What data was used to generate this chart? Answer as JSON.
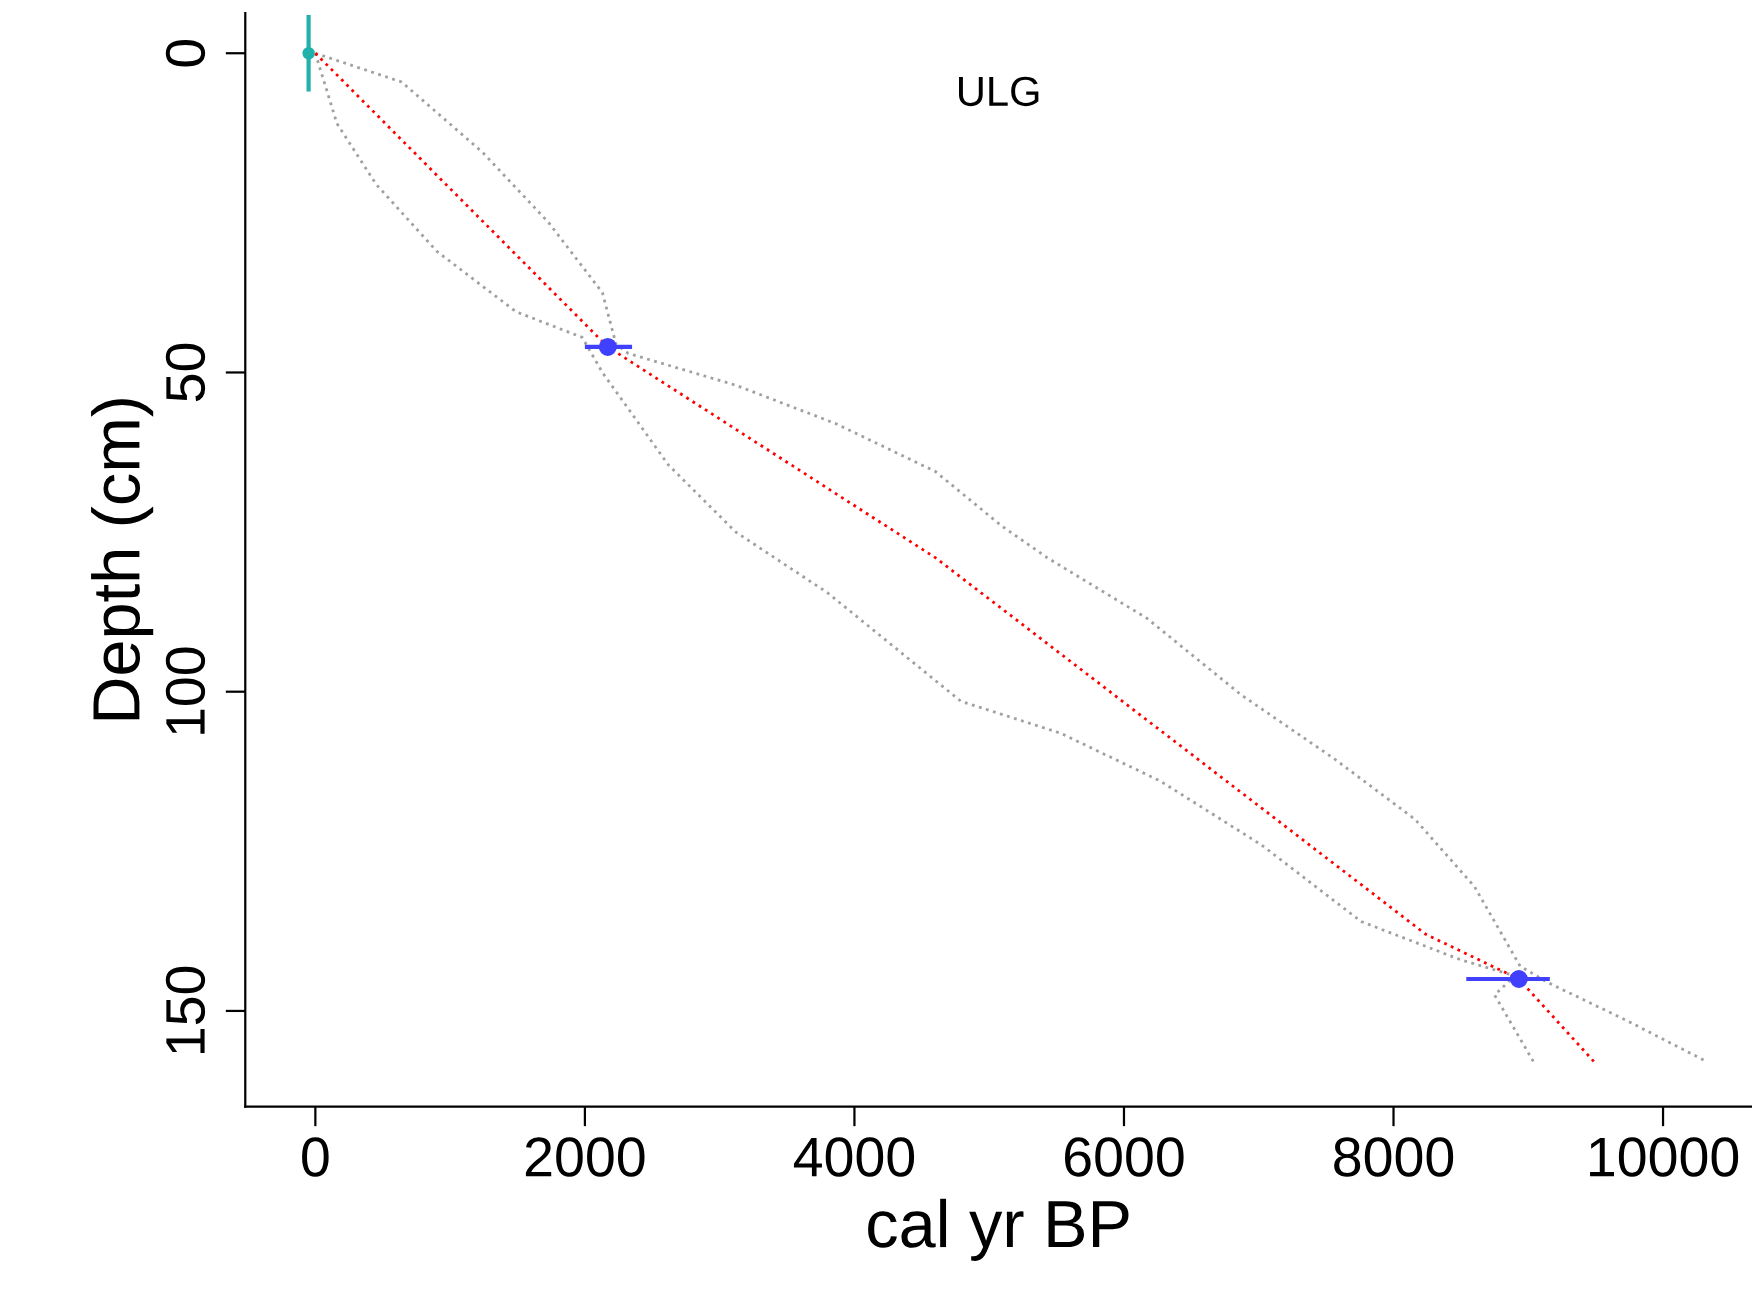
{
  "chart_data": {
    "type": "line",
    "title": "ULG",
    "xlabel": "cal yr BP",
    "ylabel": "Depth (cm)",
    "xlim": [
      -520,
      10660
    ],
    "xticks": [
      0,
      2000,
      4000,
      6000,
      8000,
      10000
    ],
    "ylim": [
      165,
      -6.3
    ],
    "yticks": [
      0,
      50,
      100,
      150
    ],
    "grid": false,
    "legend": false,
    "series": [
      {
        "color": "#a0a0a0",
        "line_style": "dotted",
        "marker": "none",
        "x": [
          0,
          640,
          1240,
          1730,
          2130,
          2230,
          2320,
          3120,
          3860,
          4600,
          5090,
          5430,
          6170,
          6870,
          7560,
          8160,
          8600,
          8940,
          9140,
          9730,
          10330
        ],
        "values": [
          0,
          4.5,
          15.5,
          26.5,
          37.5,
          45.5,
          47,
          52,
          58,
          65.5,
          74,
          79,
          88.5,
          100.5,
          110.5,
          120,
          130.5,
          143,
          145.5,
          151.5,
          158
        ]
      },
      {
        "color": "#a0a0a0",
        "line_style": "dotted",
        "marker": "none",
        "x": [
          0,
          160,
          450,
          900,
          1490,
          1980,
          2130,
          2620,
          3120,
          3800,
          4790,
          5530,
          6270,
          7020,
          7760,
          8500,
          8900,
          8750,
          9040
        ],
        "values": [
          0,
          11,
          20.5,
          31,
          40.5,
          44.5,
          50,
          64.5,
          75,
          84.5,
          101.5,
          106.5,
          114,
          124,
          136,
          142,
          144.5,
          147.5,
          158
        ]
      },
      {
        "color": "#ff0000",
        "line_style": "dotted",
        "marker": "none",
        "x": [
          0,
          2170,
          4600,
          6760,
          8240,
          8930,
          9490
        ],
        "values": [
          0,
          46,
          79,
          114,
          138,
          145,
          158
        ]
      },
      {
        "type": "scatter",
        "color": "#4040ff",
        "marker": "circle",
        "x": [
          2170,
          8930
        ],
        "values": [
          46,
          145
        ],
        "xerrors": [
          [
            2000,
            2350
          ],
          [
            8540,
            9160
          ]
        ]
      },
      {
        "type": "scatter",
        "color": "#20b2aa",
        "marker": "circle",
        "x": [
          -50
        ],
        "values": [
          0
        ],
        "errors": [
          6
        ]
      }
    ]
  }
}
